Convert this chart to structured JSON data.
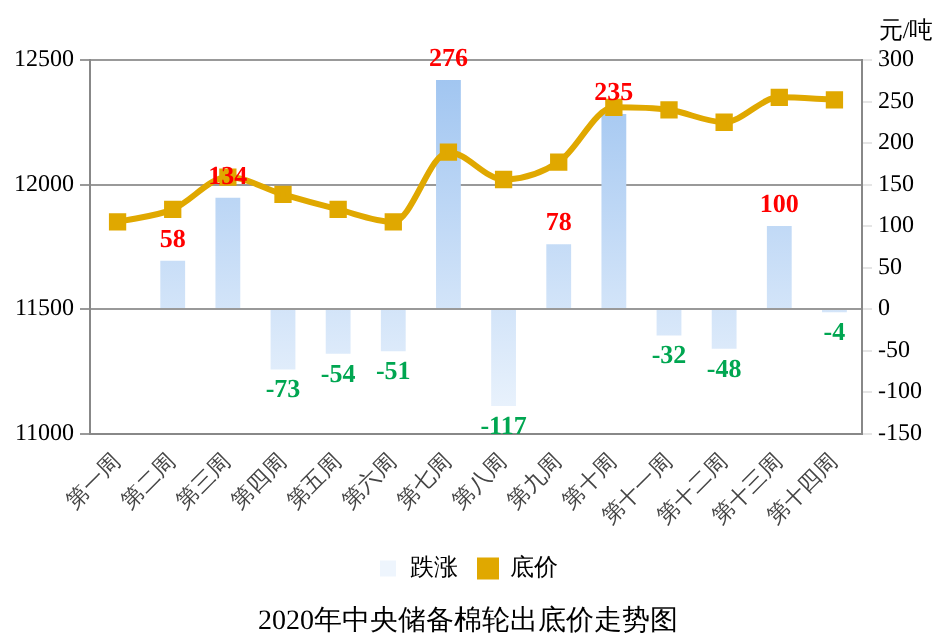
{
  "chart_data": {
    "type": "bar",
    "title": "2020年中央储备棉轮出底价走势图",
    "y2label": "元/吨",
    "categories": [
      "第一周",
      "第二周",
      "第三周",
      "第四周",
      "第五周",
      "第六周",
      "第七周",
      "第八周",
      "第九周",
      "第十周",
      "第十一周",
      "第十二周",
      "第十三周",
      "第十四周"
    ],
    "series": [
      {
        "name": "跌涨",
        "axis": "y2",
        "color": "#9dc3f0",
        "values": [
          null,
          58,
          134,
          -73,
          -54,
          -51,
          276,
          -117,
          78,
          235,
          -32,
          -48,
          100,
          -4
        ],
        "value_labels": [
          null,
          "58",
          "134",
          "-73",
          "-54",
          "-51",
          "276",
          "-117",
          "78",
          "235",
          "-32",
          "-48",
          "100",
          "-4"
        ]
      },
      {
        "name": "底价",
        "type": "line",
        "color": "#e0a800",
        "marker": "square",
        "values": [
          11850,
          11900,
          12030,
          11960,
          11900,
          11850,
          12130,
          12020,
          12090,
          12310,
          12300,
          12250,
          12350,
          12340
        ]
      }
    ],
    "ylim": [
      11000,
      12500
    ],
    "yticks": [
      11000,
      11500,
      12000,
      12500
    ],
    "y2lim": [
      -150,
      300
    ],
    "y2ticks": [
      -150,
      -100,
      -50,
      0,
      50,
      100,
      150,
      200,
      250,
      300
    ],
    "grid": "y",
    "legend": "bottom"
  }
}
